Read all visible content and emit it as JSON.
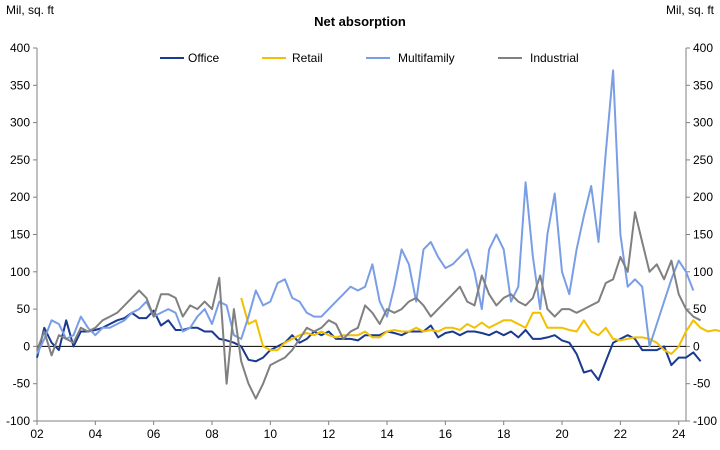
{
  "chart_data": {
    "type": "line",
    "title": "Net absorption",
    "ylabel_left": "Mil, sq. ft",
    "ylabel_right": "Mil, sq. ft",
    "ylim": [
      -100,
      400
    ],
    "yticks": [
      -100,
      -50,
      0,
      50,
      100,
      150,
      200,
      250,
      300,
      350,
      400
    ],
    "xlim": [
      2002,
      2024.25
    ],
    "xticks": [
      {
        "value": 2002,
        "label": "02"
      },
      {
        "value": 2004,
        "label": "04"
      },
      {
        "value": 2006,
        "label": "06"
      },
      {
        "value": 2008,
        "label": "08"
      },
      {
        "value": 2010,
        "label": "10"
      },
      {
        "value": 2012,
        "label": "12"
      },
      {
        "value": 2014,
        "label": "14"
      },
      {
        "value": 2016,
        "label": "16"
      },
      {
        "value": 2018,
        "label": "18"
      },
      {
        "value": 2020,
        "label": "20"
      },
      {
        "value": 2022,
        "label": "22"
      },
      {
        "value": 2024,
        "label": "24"
      }
    ],
    "grid": false,
    "legend_position": "top-center",
    "series": [
      {
        "name": "Office",
        "color": "#1a3a8f",
        "x_start": 2002.0,
        "x_step": 0.25,
        "values": [
          -15,
          25,
          5,
          -5,
          35,
          0,
          20,
          20,
          22,
          25,
          30,
          35,
          38,
          45,
          38,
          38,
          48,
          28,
          35,
          22,
          22,
          25,
          25,
          20,
          20,
          10,
          8,
          5,
          0,
          -18,
          -20,
          -15,
          -5,
          0,
          5,
          15,
          5,
          10,
          20,
          15,
          20,
          10,
          10,
          10,
          8,
          15,
          15,
          15,
          20,
          18,
          15,
          20,
          20,
          20,
          28,
          12,
          18,
          20,
          15,
          20,
          20,
          18,
          15,
          20,
          15,
          20,
          12,
          22,
          10,
          10,
          12,
          15,
          8,
          5,
          -10,
          -35,
          -32,
          -45,
          -20,
          5,
          10,
          15,
          10,
          -5,
          -5,
          -5,
          0,
          -25,
          -15,
          -15,
          -8,
          -20
        ]
      },
      {
        "name": "Retail",
        "color": "#f2c000",
        "x_start": 2009.0,
        "x_step": 0.25,
        "values": [
          65,
          30,
          35,
          0,
          -5,
          -5,
          5,
          10,
          15,
          18,
          15,
          20,
          15,
          12,
          15,
          15,
          15,
          20,
          12,
          12,
          20,
          22,
          20,
          20,
          25,
          20,
          22,
          20,
          25,
          25,
          22,
          30,
          25,
          32,
          25,
          30,
          35,
          35,
          30,
          25,
          45,
          45,
          25,
          25,
          25,
          22,
          20,
          35,
          20,
          15,
          25,
          10,
          8,
          10,
          12,
          12,
          10,
          5,
          -5,
          -10,
          0,
          20,
          35,
          25,
          20,
          22,
          20,
          15,
          22,
          10,
          12
        ]
      },
      {
        "name": "Multifamily",
        "color": "#7a9ee6",
        "x_start": 2002.0,
        "x_step": 0.25,
        "values": [
          -10,
          10,
          35,
          30,
          10,
          15,
          40,
          25,
          15,
          25,
          25,
          30,
          35,
          45,
          50,
          60,
          40,
          45,
          50,
          45,
          20,
          25,
          40,
          50,
          30,
          60,
          55,
          15,
          10,
          40,
          75,
          55,
          60,
          85,
          90,
          65,
          60,
          45,
          40,
          40,
          50,
          60,
          70,
          80,
          75,
          80,
          110,
          60,
          40,
          80,
          130,
          110,
          60,
          130,
          140,
          120,
          105,
          110,
          120,
          130,
          100,
          50,
          130,
          150,
          130,
          60,
          80,
          220,
          120,
          50,
          150,
          205,
          100,
          70,
          130,
          175,
          215,
          140,
          260,
          370,
          150,
          80,
          90,
          80,
          0,
          30,
          60,
          90,
          115,
          100,
          75
        ]
      },
      {
        "name": "Industrial",
        "color": "#808080",
        "x_start": 2002.0,
        "x_step": 0.25,
        "values": [
          -5,
          20,
          -12,
          15,
          10,
          5,
          25,
          20,
          25,
          35,
          40,
          45,
          55,
          65,
          75,
          65,
          40,
          70,
          70,
          65,
          40,
          55,
          50,
          60,
          50,
          92,
          -50,
          50,
          -20,
          -50,
          -70,
          -50,
          -25,
          -20,
          -15,
          -5,
          10,
          25,
          20,
          25,
          35,
          30,
          10,
          20,
          25,
          55,
          45,
          30,
          50,
          45,
          50,
          60,
          65,
          55,
          40,
          50,
          60,
          70,
          80,
          60,
          55,
          95,
          70,
          55,
          65,
          70,
          60,
          55,
          65,
          95,
          50,
          40,
          50,
          50,
          45,
          50,
          55,
          60,
          85,
          90,
          120,
          100,
          180,
          140,
          100,
          110,
          90,
          115,
          70,
          50,
          40,
          35
        ]
      }
    ]
  }
}
